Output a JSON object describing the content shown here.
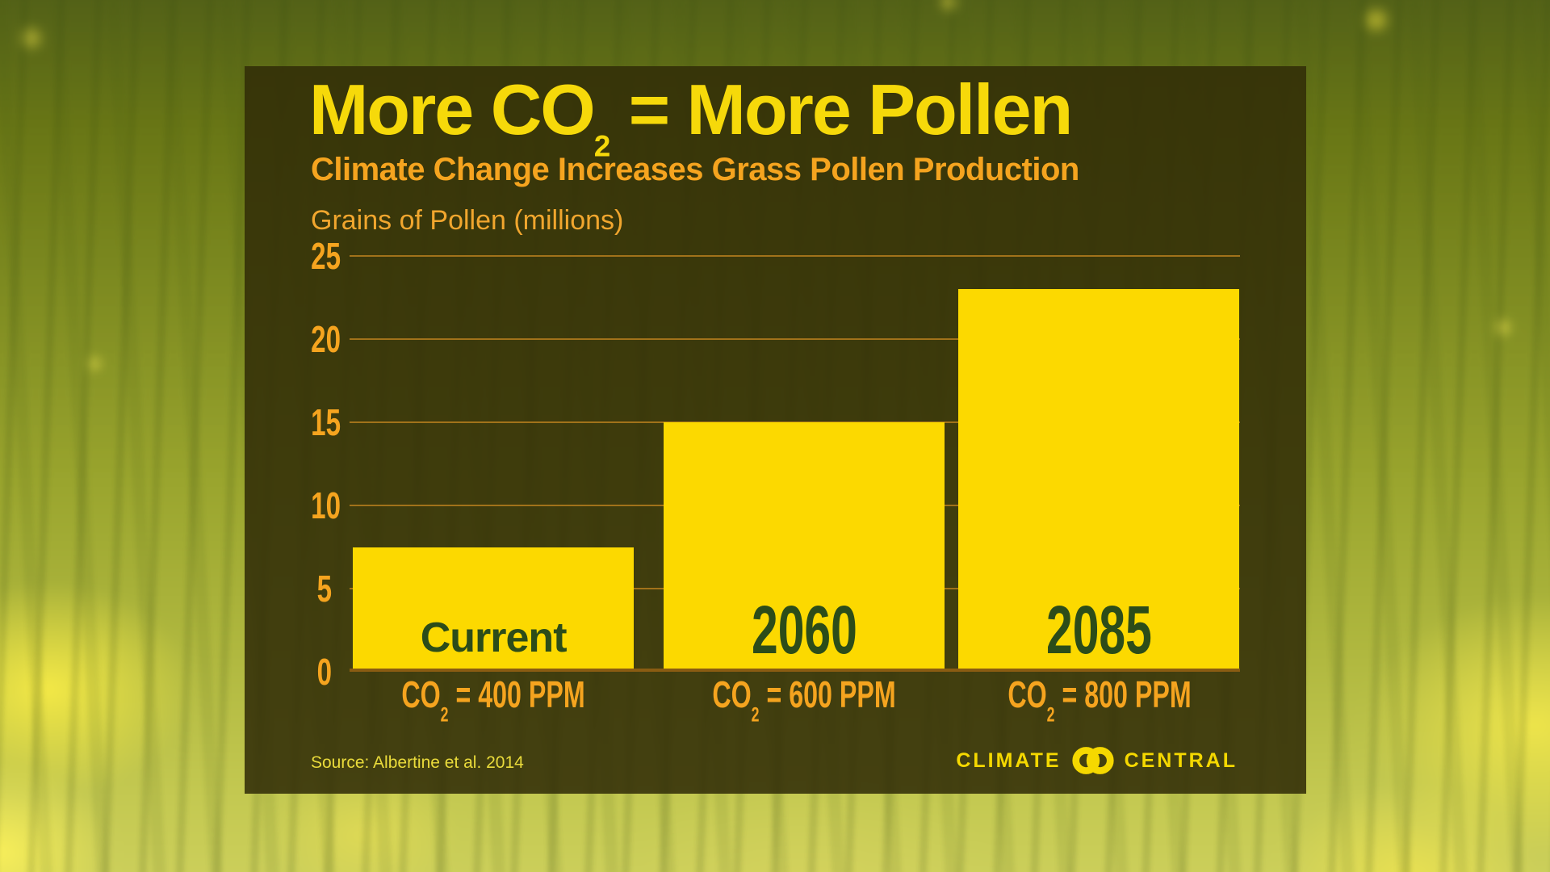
{
  "header": {
    "title_prefix": "More CO",
    "title_subscript": "2",
    "title_suffix": " = More Pollen",
    "subtitle": "Climate Change Increases Grass Pollen Production"
  },
  "footer": {
    "source": "Source: Albertine et al. 2014",
    "logo_left": "CLIMATE",
    "logo_right": "CENTRAL"
  },
  "chart_data": {
    "type": "bar",
    "title": "More CO2 = More Pollen",
    "subtitle": "Climate Change Increases Grass Pollen Production",
    "ylabel": "Grains of Pollen (millions)",
    "categories": [
      "Current",
      "2060",
      "2085"
    ],
    "values": [
      7.5,
      15,
      23
    ],
    "x_sublabels": [
      {
        "pre": "CO",
        "sub": "2",
        "post": " = 400 PPM"
      },
      {
        "pre": "CO",
        "sub": "2",
        "post": " = 600 PPM"
      },
      {
        "pre": "CO",
        "sub": "2",
        "post": " = 800 PPM"
      }
    ],
    "ylim": [
      0,
      25
    ],
    "yticks": [
      0,
      5,
      10,
      15,
      20,
      25
    ],
    "grid": true,
    "legend": false
  },
  "colors": {
    "title_yellow": "#F6D90A",
    "bar_yellow": "#FCD900",
    "orange": "#F5A41F",
    "bar_label_green": "#2C4C19",
    "gridline": "#A1721A",
    "baseline": "#8A5C12",
    "source_yellow": "#EADB3B",
    "logo_yellow": "#F5D800"
  }
}
